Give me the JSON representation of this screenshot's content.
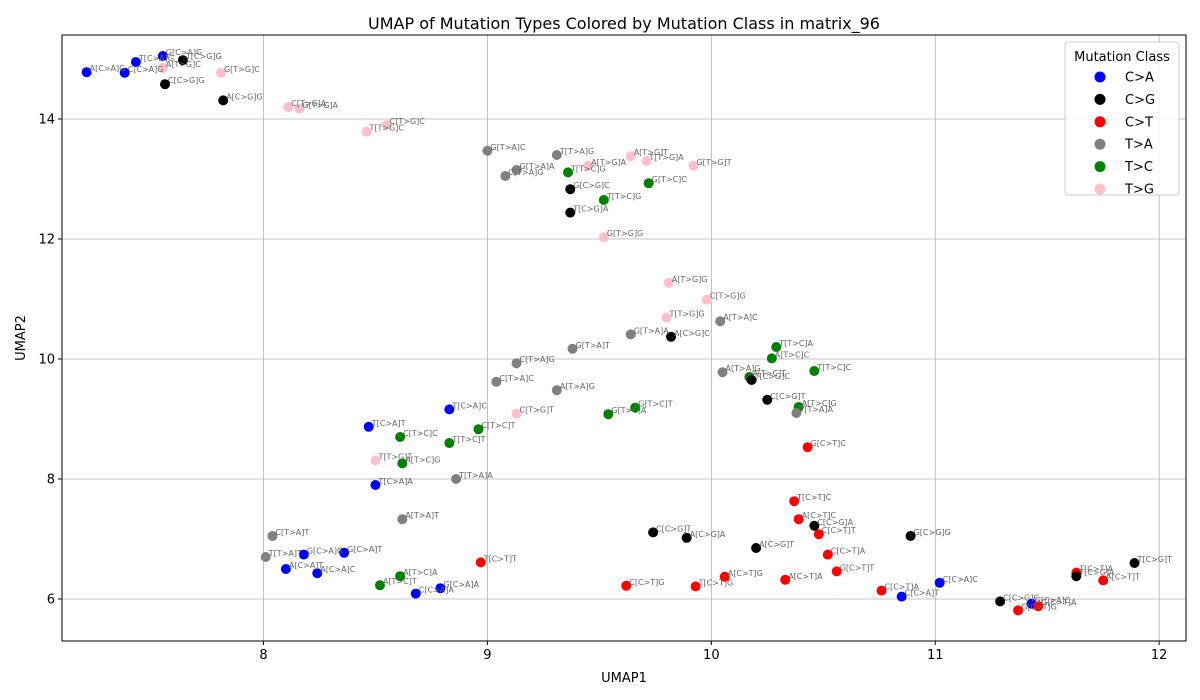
{
  "chart_data": {
    "type": "scatter",
    "title": "UMAP of Mutation Types Colored by Mutation Class in matrix_96",
    "xlabel": "UMAP1",
    "ylabel": "UMAP2",
    "xlim": [
      7.1,
      12.12
    ],
    "ylim": [
      5.3,
      15.4
    ],
    "xticks": [
      "8",
      "9",
      "10",
      "11",
      "12"
    ],
    "yticks": [
      "6",
      "8",
      "10",
      "12",
      "14"
    ],
    "grid": true,
    "legend": {
      "title": "Mutation Class",
      "position": "top-right",
      "entries": [
        "C>A",
        "C>G",
        "C>T",
        "T>A",
        "T>C",
        "T>G"
      ]
    },
    "colors": {
      "C>A": "#0000ff",
      "C>G": "#000000",
      "C>T": "#ff0000",
      "T>A": "#808080",
      "T>C": "#008000",
      "T>G": "#ffc0cb"
    },
    "points": [
      {
        "x": 7.55,
        "y": 15.05,
        "cls": "C>A",
        "label": "G[C>A]G"
      },
      {
        "x": 7.43,
        "y": 14.95,
        "cls": "C>A",
        "label": "T[C>A]G"
      },
      {
        "x": 7.21,
        "y": 14.78,
        "cls": "C>A",
        "label": "A[C>A]G"
      },
      {
        "x": 7.38,
        "y": 14.77,
        "cls": "C>A",
        "label": "C[C>A]G"
      },
      {
        "x": 7.64,
        "y": 14.98,
        "cls": "C>G",
        "label": "T[C>G]G"
      },
      {
        "x": 7.56,
        "y": 14.58,
        "cls": "C>G",
        "label": "C[C>G]G"
      },
      {
        "x": 7.82,
        "y": 14.31,
        "cls": "C>G",
        "label": "A[C>G]G"
      },
      {
        "x": 7.55,
        "y": 14.85,
        "cls": "T>G",
        "label": "A[T>G]C"
      },
      {
        "x": 7.81,
        "y": 14.77,
        "cls": "T>G",
        "label": "G[T>G]C"
      },
      {
        "x": 8.11,
        "y": 14.2,
        "cls": "T>G",
        "label": "C[T>G]A"
      },
      {
        "x": 8.16,
        "y": 14.17,
        "cls": "T>G",
        "label": "G[T>G]A"
      },
      {
        "x": 8.55,
        "y": 13.9,
        "cls": "T>G",
        "label": "C[T>G]C"
      },
      {
        "x": 8.46,
        "y": 13.79,
        "cls": "T>G",
        "label": "T[T>G]C"
      },
      {
        "x": 9.0,
        "y": 13.47,
        "cls": "T>A",
        "label": "G[T>A]C"
      },
      {
        "x": 9.31,
        "y": 13.4,
        "cls": "T>A",
        "label": "T[T>A]G"
      },
      {
        "x": 9.64,
        "y": 13.38,
        "cls": "T>G",
        "label": "A[T>G]T"
      },
      {
        "x": 9.45,
        "y": 13.22,
        "cls": "T>G",
        "label": "A[T>G]A"
      },
      {
        "x": 9.71,
        "y": 13.3,
        "cls": "T>G",
        "label": "T[T>G]A"
      },
      {
        "x": 9.92,
        "y": 13.22,
        "cls": "T>G",
        "label": "G[T>G]T"
      },
      {
        "x": 9.13,
        "y": 13.15,
        "cls": "T>A",
        "label": "G[T>A]A"
      },
      {
        "x": 9.08,
        "y": 13.05,
        "cls": "T>A",
        "label": "C[T>A]G"
      },
      {
        "x": 9.36,
        "y": 13.11,
        "cls": "T>C",
        "label": "T[T>C]G"
      },
      {
        "x": 9.72,
        "y": 12.93,
        "cls": "T>C",
        "label": "G[T>C]C"
      },
      {
        "x": 9.37,
        "y": 12.83,
        "cls": "C>G",
        "label": "G[C>G]C"
      },
      {
        "x": 9.52,
        "y": 12.65,
        "cls": "T>C",
        "label": "T[T>C]G"
      },
      {
        "x": 9.37,
        "y": 12.44,
        "cls": "C>G",
        "label": "T[C>G]A"
      },
      {
        "x": 9.52,
        "y": 12.03,
        "cls": "T>G",
        "label": "G[T>G]G"
      },
      {
        "x": 9.81,
        "y": 11.27,
        "cls": "T>G",
        "label": "A[T>G]G"
      },
      {
        "x": 9.98,
        "y": 10.99,
        "cls": "T>G",
        "label": "C[T>G]G"
      },
      {
        "x": 9.8,
        "y": 10.69,
        "cls": "T>G",
        "label": "T[T>G]G"
      },
      {
        "x": 10.04,
        "y": 10.63,
        "cls": "T>A",
        "label": "A[T>A]C"
      },
      {
        "x": 9.64,
        "y": 10.41,
        "cls": "T>A",
        "label": "G[T>A]A"
      },
      {
        "x": 9.82,
        "y": 10.37,
        "cls": "C>G",
        "label": "A[C>G]C"
      },
      {
        "x": 9.38,
        "y": 10.17,
        "cls": "T>A",
        "label": "G[T>A]T"
      },
      {
        "x": 10.29,
        "y": 10.2,
        "cls": "T>C",
        "label": "T[T>C]A"
      },
      {
        "x": 10.27,
        "y": 10.01,
        "cls": "T>C",
        "label": "A[T>C]C"
      },
      {
        "x": 9.13,
        "y": 9.93,
        "cls": "T>A",
        "label": "C[T>A]G"
      },
      {
        "x": 10.05,
        "y": 9.78,
        "cls": "T>A",
        "label": "A[T>A]G"
      },
      {
        "x": 10.46,
        "y": 9.8,
        "cls": "T>C",
        "label": "T[T>C]C"
      },
      {
        "x": 10.17,
        "y": 9.7,
        "cls": "T>C",
        "label": "A[T>C]T"
      },
      {
        "x": 10.18,
        "y": 9.65,
        "cls": "C>G",
        "label": "T[C>G]C"
      },
      {
        "x": 9.04,
        "y": 9.62,
        "cls": "T>A",
        "label": "C[T>A]C"
      },
      {
        "x": 9.31,
        "y": 9.48,
        "cls": "T>A",
        "label": "A[T>A]G"
      },
      {
        "x": 10.25,
        "y": 9.32,
        "cls": "C>G",
        "label": "C[C>G]T"
      },
      {
        "x": 10.39,
        "y": 9.2,
        "cls": "T>C",
        "label": "A[T>C]G"
      },
      {
        "x": 10.38,
        "y": 9.1,
        "cls": "T>A",
        "label": "T[T>A]A"
      },
      {
        "x": 8.83,
        "y": 9.16,
        "cls": "C>A",
        "label": "T[C>A]C"
      },
      {
        "x": 9.66,
        "y": 9.19,
        "cls": "T>C",
        "label": "G[T>C]T"
      },
      {
        "x": 9.13,
        "y": 9.09,
        "cls": "T>G",
        "label": "C[T>G]T"
      },
      {
        "x": 9.54,
        "y": 9.08,
        "cls": "T>C",
        "label": "G[T>C]A"
      },
      {
        "x": 8.47,
        "y": 8.87,
        "cls": "C>A",
        "label": "T[C>A]T"
      },
      {
        "x": 8.96,
        "y": 8.83,
        "cls": "T>C",
        "label": "C[T>C]T"
      },
      {
        "x": 8.61,
        "y": 8.7,
        "cls": "T>C",
        "label": "C[T>C]C"
      },
      {
        "x": 8.83,
        "y": 8.6,
        "cls": "T>C",
        "label": "T[T>C]T"
      },
      {
        "x": 10.43,
        "y": 8.53,
        "cls": "C>T",
        "label": "G[C>T]C"
      },
      {
        "x": 8.5,
        "y": 8.31,
        "cls": "T>G",
        "label": "T[T>G]T"
      },
      {
        "x": 8.62,
        "y": 8.26,
        "cls": "T>C",
        "label": "A[T>C]G"
      },
      {
        "x": 8.86,
        "y": 8.0,
        "cls": "T>A",
        "label": "T[T>A]A"
      },
      {
        "x": 8.5,
        "y": 7.9,
        "cls": "C>A",
        "label": "T[C>A]A"
      },
      {
        "x": 10.37,
        "y": 7.63,
        "cls": "C>T",
        "label": "T[C>T]C"
      },
      {
        "x": 8.62,
        "y": 7.33,
        "cls": "T>A",
        "label": "A[T>A]T"
      },
      {
        "x": 10.39,
        "y": 7.33,
        "cls": "C>T",
        "label": "A[C>T]C"
      },
      {
        "x": 10.46,
        "y": 7.22,
        "cls": "C>G",
        "label": "C[C>G]A"
      },
      {
        "x": 9.74,
        "y": 7.11,
        "cls": "C>G",
        "label": "C[C>G]T"
      },
      {
        "x": 10.48,
        "y": 7.08,
        "cls": "C>T",
        "label": "C[C>T]T"
      },
      {
        "x": 10.89,
        "y": 7.05,
        "cls": "C>G",
        "label": "G[C>G]G"
      },
      {
        "x": 8.04,
        "y": 7.05,
        "cls": "T>A",
        "label": "C[T>A]T"
      },
      {
        "x": 9.89,
        "y": 7.02,
        "cls": "C>G",
        "label": "A[C>G]A"
      },
      {
        "x": 10.2,
        "y": 6.85,
        "cls": "C>G",
        "label": "A[C>G]T"
      },
      {
        "x": 8.36,
        "y": 6.77,
        "cls": "C>A",
        "label": "G[C>A]T"
      },
      {
        "x": 8.18,
        "y": 6.74,
        "cls": "C>A",
        "label": "G[C>A]G"
      },
      {
        "x": 10.52,
        "y": 6.74,
        "cls": "C>T",
        "label": "C[C>T]A"
      },
      {
        "x": 8.01,
        "y": 6.7,
        "cls": "T>A",
        "label": "T[T>A]T"
      },
      {
        "x": 8.97,
        "y": 6.61,
        "cls": "C>T",
        "label": "T[C>T]T"
      },
      {
        "x": 11.89,
        "y": 6.6,
        "cls": "C>G",
        "label": "T[C>G]T"
      },
      {
        "x": 8.1,
        "y": 6.5,
        "cls": "C>A",
        "label": "A[C>A]T"
      },
      {
        "x": 10.56,
        "y": 6.46,
        "cls": "C>T",
        "label": "G[C>T]T"
      },
      {
        "x": 11.63,
        "y": 6.44,
        "cls": "C>T",
        "label": "T[C>T]A"
      },
      {
        "x": 8.24,
        "y": 6.43,
        "cls": "C>A",
        "label": "A[C>A]C"
      },
      {
        "x": 11.63,
        "y": 6.38,
        "cls": "C>G",
        "label": "T[C>G]A"
      },
      {
        "x": 8.61,
        "y": 6.38,
        "cls": "T>C",
        "label": "A[T>C]A"
      },
      {
        "x": 10.06,
        "y": 6.37,
        "cls": "C>T",
        "label": "A[C>T]G"
      },
      {
        "x": 10.33,
        "y": 6.32,
        "cls": "C>T",
        "label": "A[C>T]A"
      },
      {
        "x": 11.75,
        "y": 6.31,
        "cls": "C>T",
        "label": "A[C>T]T"
      },
      {
        "x": 11.02,
        "y": 6.27,
        "cls": "C>A",
        "label": "C[C>A]C"
      },
      {
        "x": 8.52,
        "y": 6.23,
        "cls": "T>C",
        "label": "A[T>C]T"
      },
      {
        "x": 9.62,
        "y": 6.22,
        "cls": "C>T",
        "label": "C[C>T]G"
      },
      {
        "x": 9.93,
        "y": 6.21,
        "cls": "C>T",
        "label": "T[C>T]G"
      },
      {
        "x": 8.79,
        "y": 6.18,
        "cls": "C>A",
        "label": "G[C>A]A"
      },
      {
        "x": 10.76,
        "y": 6.14,
        "cls": "C>T",
        "label": "C[C>T]A"
      },
      {
        "x": 8.68,
        "y": 6.09,
        "cls": "C>A",
        "label": "C[C>A]A"
      },
      {
        "x": 10.85,
        "y": 6.04,
        "cls": "C>A",
        "label": "C[C>A]T"
      },
      {
        "x": 11.29,
        "y": 5.96,
        "cls": "C>G",
        "label": "C[C>G]C"
      },
      {
        "x": 11.43,
        "y": 5.92,
        "cls": "C>A",
        "label": "G[C>A]C"
      },
      {
        "x": 11.46,
        "y": 5.88,
        "cls": "C>T",
        "label": "G[C>T]A"
      },
      {
        "x": 11.37,
        "y": 5.81,
        "cls": "C>T",
        "label": "G[C>T]G"
      }
    ]
  }
}
